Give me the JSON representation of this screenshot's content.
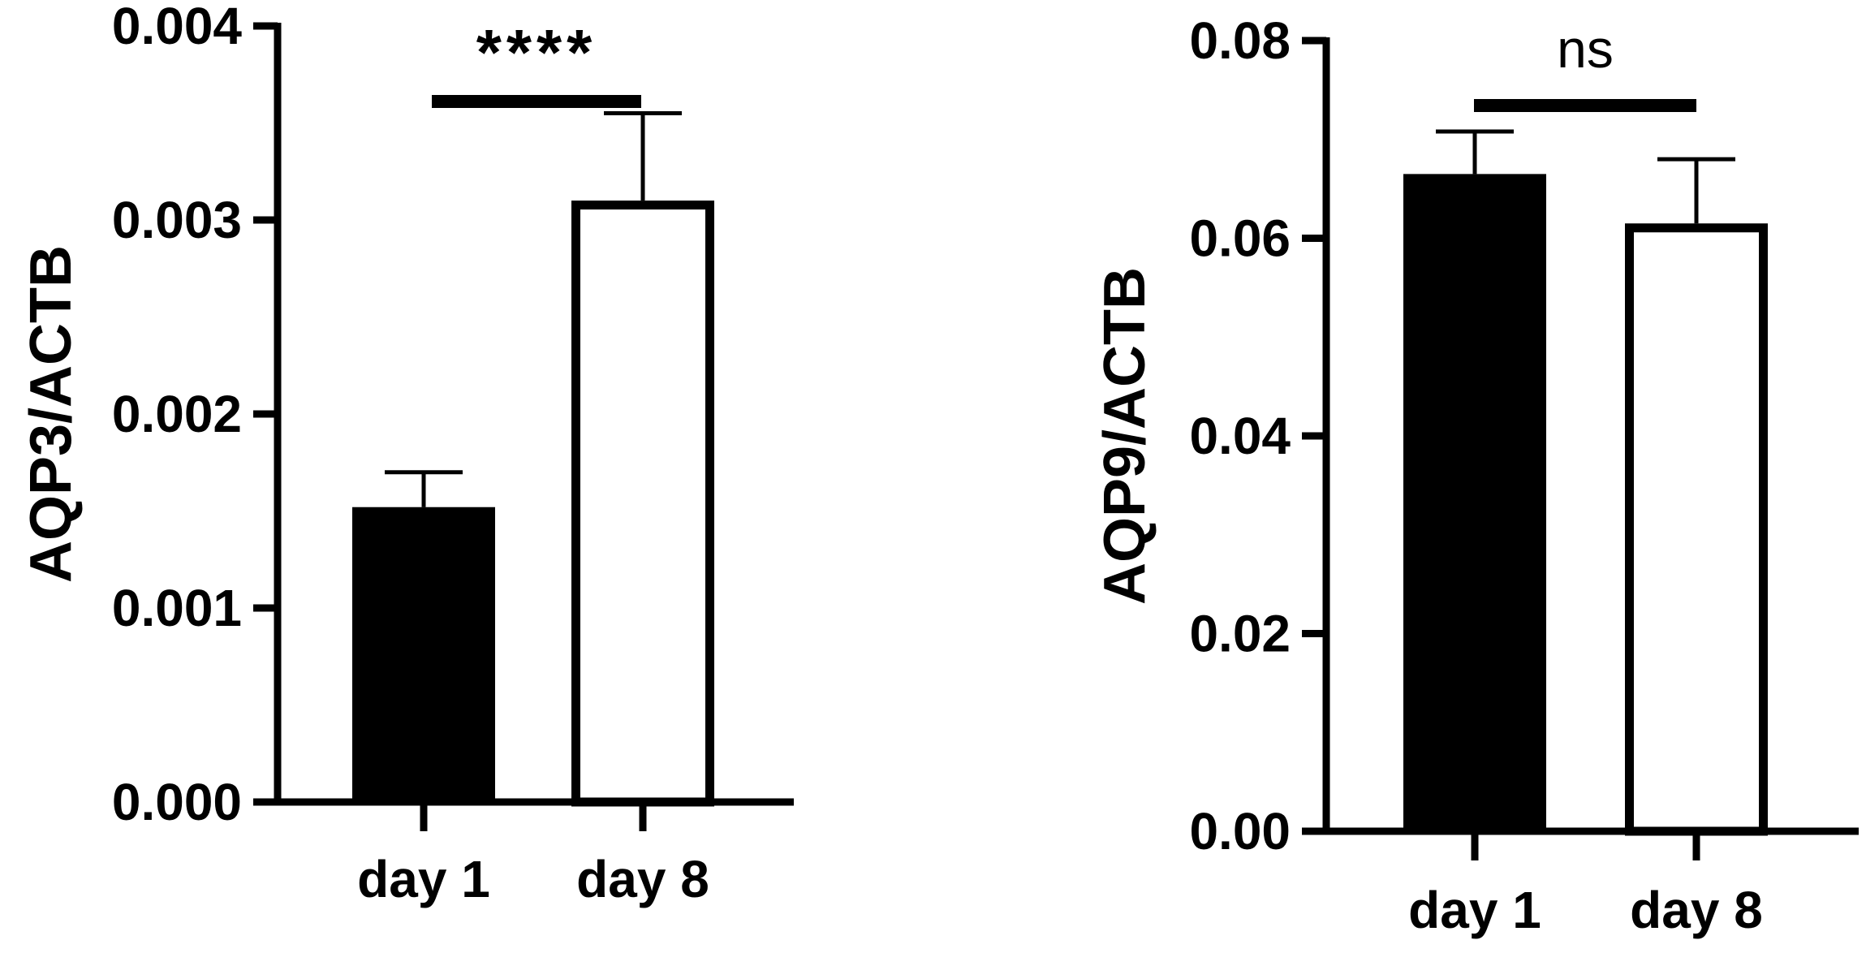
{
  "chart_data": [
    {
      "type": "bar",
      "categories": [
        "day 1",
        "day 8"
      ],
      "values": [
        0.00152,
        0.0031
      ],
      "errors": [
        0.00018,
        0.00045
      ],
      "bar_fill": [
        "#000000",
        "#ffffff"
      ],
      "ylabel": "AQP3/ACTB",
      "xlabel": "",
      "ylim": [
        0,
        0.004
      ],
      "yticks": [
        "0.000",
        "0.001",
        "0.002",
        "0.003",
        "0.004"
      ],
      "significance": "****",
      "grid": false
    },
    {
      "type": "bar",
      "categories": [
        "day 1",
        "day 8"
      ],
      "values": [
        0.0665,
        0.0615
      ],
      "errors": [
        0.0043,
        0.0065
      ],
      "bar_fill": [
        "#000000",
        "#ffffff"
      ],
      "ylabel": "AQP9/ACTB",
      "xlabel": "",
      "ylim": [
        0,
        0.08
      ],
      "yticks": [
        "0.00",
        "0.02",
        "0.04",
        "0.06",
        "0.08"
      ],
      "significance": "ns",
      "grid": false
    }
  ]
}
